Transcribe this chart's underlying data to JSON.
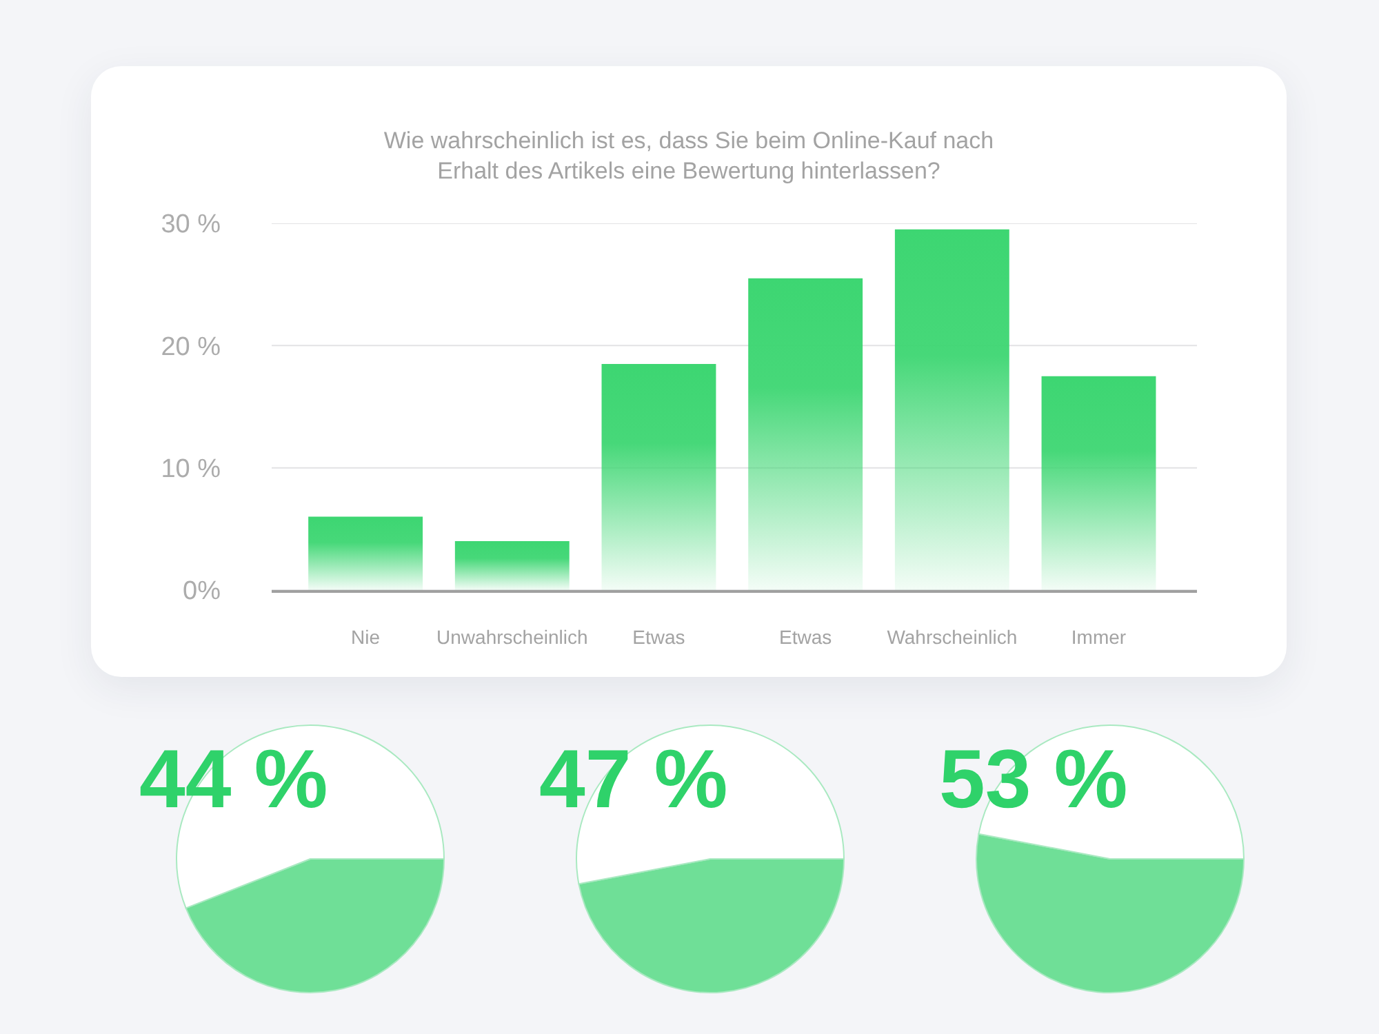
{
  "chart_data": [
    {
      "type": "bar",
      "title": "Wie wahrscheinlich ist es, dass Sie beim Online-Kauf nach\nErhalt des Artikels eine Bewertung hinterlassen?",
      "categories": [
        "Nie",
        "Unwahrscheinlich",
        "Etwas",
        "Etwas",
        "Wahrscheinlich",
        "Immer"
      ],
      "values": [
        6,
        4,
        18.5,
        25.5,
        29.5,
        17.5
      ],
      "color": "#3dd672",
      "ylim": [
        0,
        30
      ],
      "yticks": [
        {
          "value": 0,
          "label": "0%"
        },
        {
          "value": 10,
          "label": "10 %"
        },
        {
          "value": 20,
          "label": "20 %"
        },
        {
          "value": 30,
          "label": "30 %"
        }
      ],
      "grid": "y"
    },
    {
      "type": "pie",
      "title": "44 %",
      "categories": [
        null,
        null
      ],
      "values": [
        44,
        56
      ],
      "colors": [
        "#6fdf97",
        "#ffffff"
      ]
    },
    {
      "type": "pie",
      "title": "47 %",
      "categories": [
        null,
        null
      ],
      "values": [
        47,
        53
      ],
      "colors": [
        "#6fdf97",
        "#ffffff"
      ]
    },
    {
      "type": "pie",
      "title": "53 %",
      "categories": [
        null,
        null
      ],
      "values": [
        53,
        47
      ],
      "colors": [
        "#6fdf97",
        "#ffffff"
      ]
    }
  ]
}
